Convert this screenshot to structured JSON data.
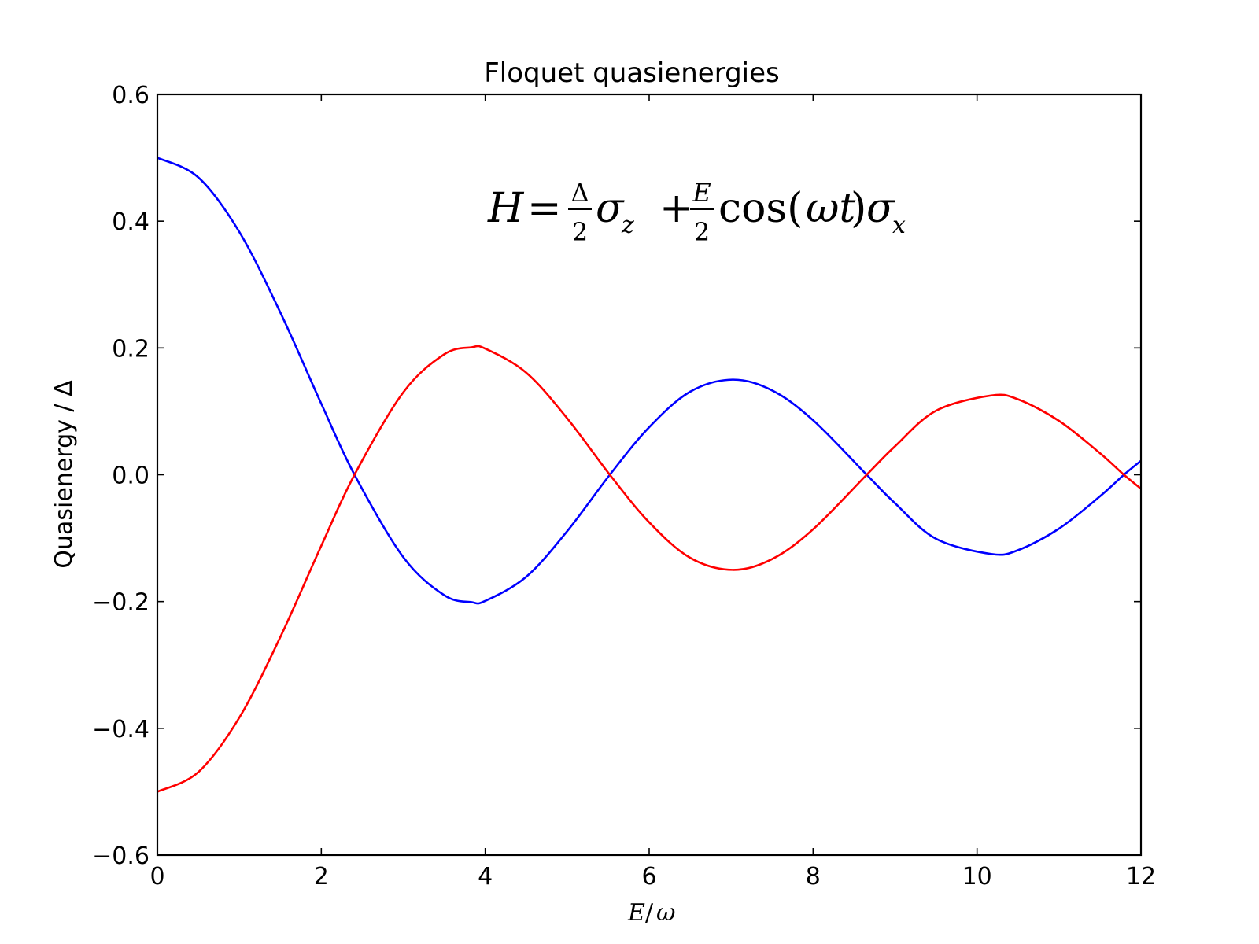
{
  "chart_data": {
    "type": "line",
    "title": "Floquet quasienergies",
    "xlabel": "E/ω",
    "ylabel": "Quasienergy / Δ",
    "annotation": "H = Δ/2 σ_z + E/2 cos(ωt) σ_x",
    "xlim": [
      0,
      12
    ],
    "ylim": [
      -0.6,
      0.6
    ],
    "xticks": [
      0,
      2,
      4,
      6,
      8,
      10,
      12
    ],
    "xtick_labels": [
      "0",
      "2",
      "4",
      "6",
      "8",
      "10",
      "12"
    ],
    "yticks": [
      0.6,
      0.4,
      0.2,
      0.0,
      -0.2,
      -0.4,
      -0.6
    ],
    "ytick_labels": [
      "0.6",
      "0.4",
      "0.2",
      "0.0",
      "−0.2",
      "−0.4",
      "−0.6"
    ],
    "grid": false,
    "legend": "none",
    "x": [
      0,
      0.5,
      1,
      1.5,
      2,
      2.405,
      3,
      3.5,
      3.832,
      4,
      4.5,
      5,
      5.52,
      6,
      6.5,
      7.016,
      7.5,
      8,
      8.654,
      9,
      9.5,
      10.173,
      10.5,
      11,
      11.5,
      11.792,
      12
    ],
    "series": [
      {
        "color": "#0000ff",
        "values": [
          0.5,
          0.469,
          0.383,
          0.256,
          0.112,
          0.0,
          -0.13,
          -0.19,
          -0.201,
          -0.199,
          -0.161,
          -0.089,
          0.0,
          0.075,
          0.131,
          0.15,
          0.133,
          0.086,
          0.0,
          -0.045,
          -0.101,
          -0.125,
          -0.119,
          -0.085,
          -0.034,
          0.0,
          0.022
        ]
      },
      {
        "color": "#ff0000",
        "values": [
          -0.5,
          -0.469,
          -0.383,
          -0.256,
          -0.112,
          0.0,
          0.13,
          0.19,
          0.201,
          0.199,
          0.161,
          0.089,
          0.0,
          -0.075,
          -0.131,
          -0.15,
          -0.133,
          -0.086,
          0.0,
          0.045,
          0.101,
          0.125,
          0.119,
          0.085,
          0.034,
          0.0,
          -0.022
        ]
      }
    ]
  }
}
